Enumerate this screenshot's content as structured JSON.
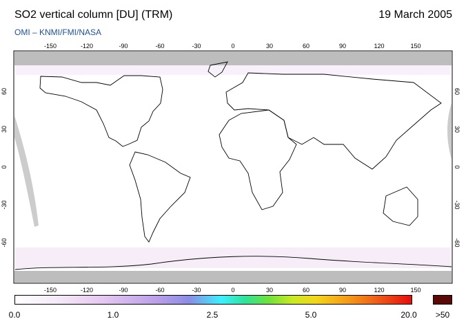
{
  "header": {
    "title": "SO2 vertical column [DU] (TRM)",
    "date": "19 March 2005",
    "credit": "OMI  –  KNMI/FMI/NASA"
  },
  "map": {
    "projection": "equirectangular",
    "lon_ticks": [
      "-150",
      "-120",
      "-90",
      "-60",
      "-30",
      "0",
      "30",
      "60",
      "90",
      "120",
      "150"
    ],
    "lat_ticks": [
      "60",
      "30",
      "0",
      "-30",
      "-60"
    ],
    "colors": {
      "no_data": "#cccccc",
      "polar_no_data": "#bdbdbd",
      "background": "#ffffff",
      "coastline": "#000000"
    }
  },
  "colorbar": {
    "labels": [
      "0.0",
      "1.0",
      "2.5",
      "5.0",
      "20.0",
      ">50"
    ],
    "max_color": "#5a0808",
    "gradient_colors": [
      "#ffffff",
      "#e6c8f0",
      "#8a8de6",
      "#3cf0ff",
      "#6fe23a",
      "#f2d61a",
      "#f59a17",
      "#e60d0d"
    ]
  }
}
